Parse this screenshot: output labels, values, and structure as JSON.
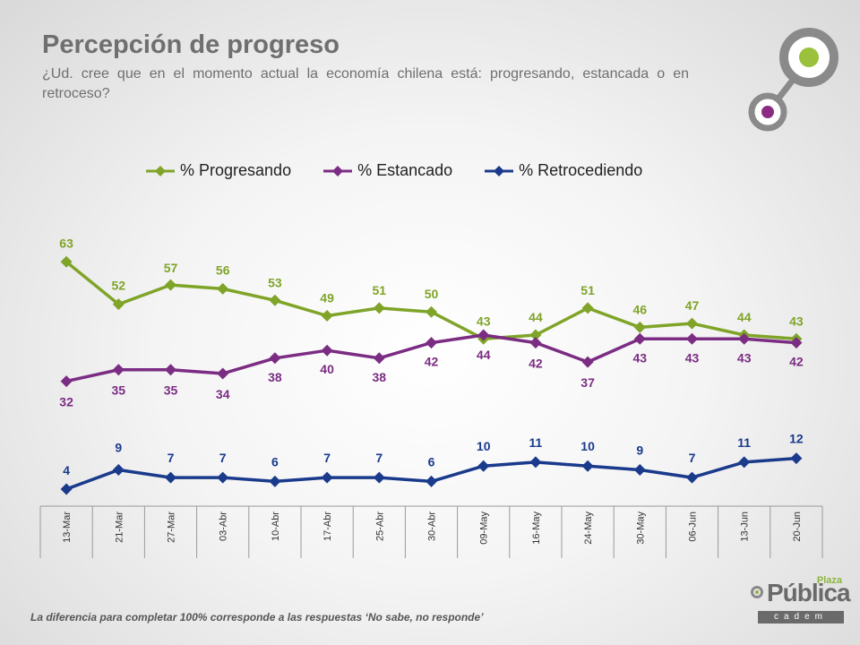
{
  "header": {
    "title": "Percepción de progreso",
    "subtitle": "¿Ud. cree que en el momento actual la economía chilena está: progresando, estancada o en retroceso?"
  },
  "footnote": "La diferencia para completar 100% corresponde a las respuestas ‘No sabe, no responde’",
  "brand": {
    "plaza": "Plaza",
    "name": "Pública",
    "sub": "cadem"
  },
  "chart_data": {
    "type": "line",
    "categories": [
      "13-Mar",
      "21-Mar",
      "27-Mar",
      "03-Abr",
      "10-Abr",
      "17-Abr",
      "25-Abr",
      "30-Abr",
      "09-May",
      "16-May",
      "24-May",
      "30-May",
      "06-Jun",
      "13-Jun",
      "20-Jun"
    ],
    "series": [
      {
        "name": "% Progresando",
        "color": "#7fa428",
        "values": [
          63,
          52,
          57,
          56,
          53,
          49,
          51,
          50,
          43,
          44,
          51,
          46,
          47,
          44,
          43
        ]
      },
      {
        "name": "% Estancado",
        "color": "#7b2c83",
        "values": [
          32,
          35,
          35,
          34,
          38,
          40,
          38,
          42,
          44,
          42,
          37,
          43,
          43,
          43,
          42
        ]
      },
      {
        "name": "% Retrocediendo",
        "color": "#1a3a8c",
        "values": [
          4,
          9,
          7,
          7,
          6,
          7,
          7,
          6,
          10,
          11,
          10,
          9,
          7,
          11,
          12
        ]
      }
    ],
    "legend_position": "top",
    "grid": false,
    "xlabel": "",
    "ylabel": ""
  }
}
